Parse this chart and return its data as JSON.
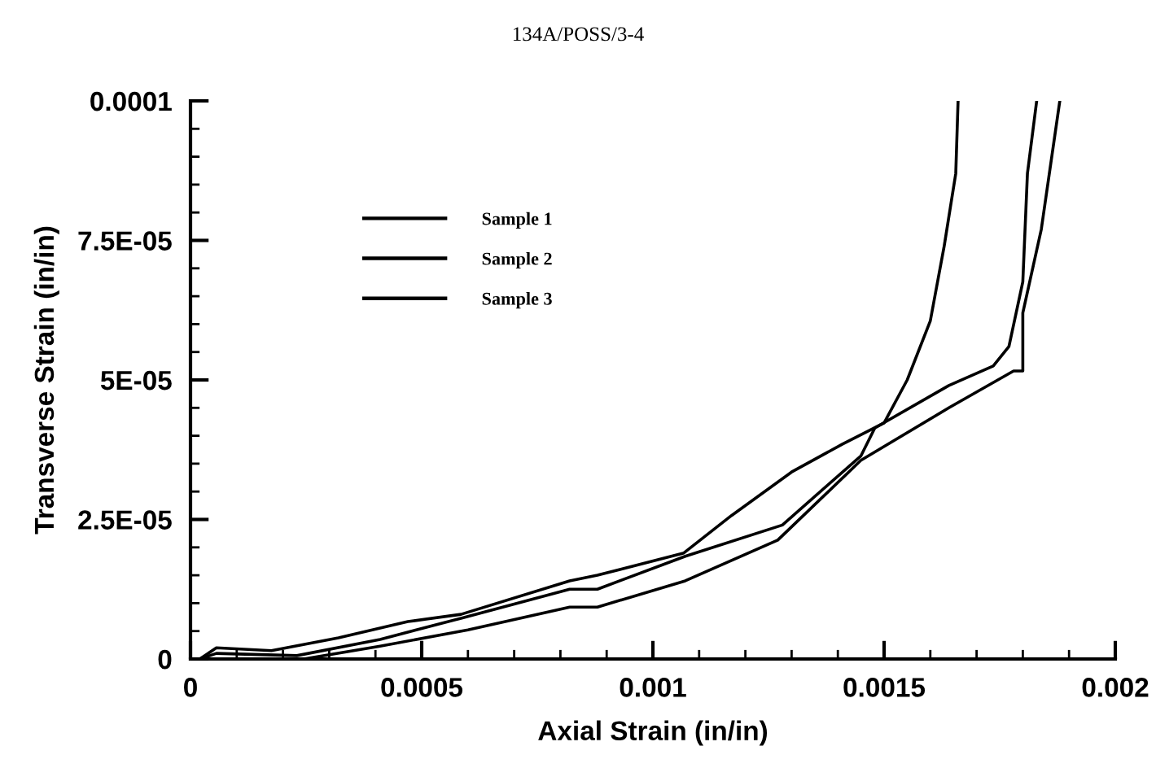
{
  "chart_data": {
    "type": "line",
    "title": "134A/POSS/3-4",
    "xlabel": "Axial Strain (in/in)",
    "ylabel": "Transverse Strain (in/in)",
    "xlim": [
      0,
      0.002
    ],
    "ylim": [
      0,
      0.0001
    ],
    "xticks": [
      {
        "value": 0,
        "label": "0"
      },
      {
        "value": 0.0005,
        "label": "0.0005"
      },
      {
        "value": 0.001,
        "label": "0.001"
      },
      {
        "value": 0.0015,
        "label": "0.0015"
      },
      {
        "value": 0.002,
        "label": "0.002"
      }
    ],
    "yticks": [
      {
        "value": 0,
        "label": "0"
      },
      {
        "value": 2.5e-05,
        "label": "2.5E-05"
      },
      {
        "value": 5e-05,
        "label": "5E-05"
      },
      {
        "value": 7.5e-05,
        "label": "7.5E-05"
      },
      {
        "value": 0.0001,
        "label": "0.0001"
      }
    ],
    "legend": "top left",
    "line_style": "solid",
    "marker": "none",
    "series": [
      {
        "name": "Sample 1",
        "color": "#000000",
        "x": [
          2e-05,
          5.6e-05,
          0.000175,
          0.00032,
          0.00047,
          0.000585,
          0.00082,
          0.00088,
          0.001067,
          0.00117,
          0.0013,
          0.00141,
          0.0015,
          0.00155,
          0.0016,
          0.00163,
          0.001655,
          0.00166
        ],
        "values": [
          0,
          2e-06,
          1.5e-06,
          3.8e-06,
          6.7e-06,
          8e-06,
          1.4e-05,
          1.5e-05,
          1.9e-05,
          2.57e-05,
          3.35e-05,
          3.85e-05,
          4.23e-05,
          5e-05,
          6.06e-05,
          7.4e-05,
          8.7e-05,
          0.0001
        ]
      },
      {
        "name": "Sample 2",
        "color": "#000000",
        "x": [
          2e-05,
          5.6e-05,
          0.00023,
          0.00041,
          0.000585,
          0.00082,
          0.00088,
          0.00107,
          0.00128,
          0.00145,
          0.00148,
          0.00164,
          0.001736,
          0.00177,
          0.0018,
          0.00181,
          0.00183
        ],
        "values": [
          0,
          1e-06,
          6e-07,
          3.5e-06,
          7.3e-06,
          1.25e-05,
          1.25e-05,
          1.84e-05,
          2.4e-05,
          3.64e-05,
          4.14e-05,
          4.9e-05,
          5.25e-05,
          5.6e-05,
          6.76e-05,
          8.7e-05,
          0.0001
        ]
      },
      {
        "name": "Sample 3",
        "color": "#000000",
        "x": [
          2e-05,
          5.6e-05,
          0.000245,
          0.00041,
          0.0006,
          0.00082,
          0.00088,
          0.00107,
          0.00127,
          0.00145,
          0.00164,
          0.00178,
          0.0018,
          0.0018,
          0.00184,
          0.00188
        ],
        "values": [
          0,
          0,
          0,
          2.3e-06,
          5.2e-06,
          9.3e-06,
          9.3e-06,
          1.4e-05,
          2.13e-05,
          3.56e-05,
          4.5e-05,
          5.16e-05,
          5.16e-05,
          6.2e-05,
          7.7e-05,
          0.0001
        ]
      }
    ]
  }
}
